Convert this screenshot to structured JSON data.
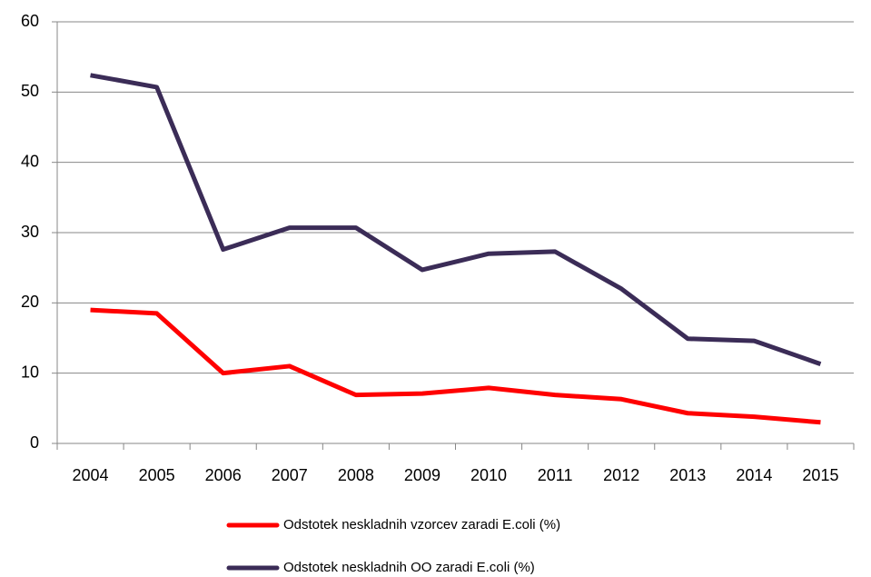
{
  "chart_data": {
    "type": "line",
    "categories": [
      "2004",
      "2005",
      "2006",
      "2007",
      "2008",
      "2009",
      "2010",
      "2011",
      "2012",
      "2013",
      "2014",
      "2015"
    ],
    "series": [
      {
        "name": "Odstotek neskladnih vzorcev zaradi E.coli (%)",
        "color": "#ff0000",
        "values": [
          19.0,
          18.5,
          10.0,
          11.0,
          6.9,
          7.1,
          7.9,
          6.9,
          6.3,
          4.3,
          3.8,
          3.0
        ]
      },
      {
        "name": "Odstotek neskladnih OO zaradi E.coli (%)",
        "color": "#3b2c57",
        "values": [
          52.4,
          50.7,
          27.6,
          30.7,
          30.7,
          24.7,
          27.0,
          27.3,
          22.0,
          14.9,
          14.6,
          11.3
        ]
      }
    ],
    "ylim": [
      0,
      60
    ],
    "yticks": [
      0,
      10,
      20,
      30,
      40,
      50,
      60
    ],
    "grid": true,
    "legend": "bottom"
  }
}
